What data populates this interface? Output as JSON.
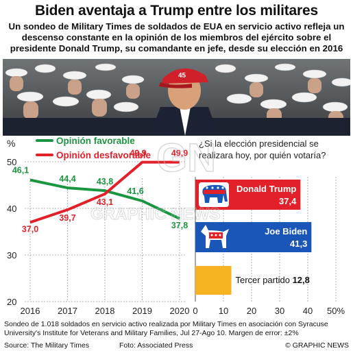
{
  "title": "Biden aventaja a Trump entre los militares",
  "subtitle": "Un sondeo de Military Times de soldados de EUA en servicio activo refleja un descenso constante en la opinión de los miembros del ejército sobre el presidente Donald Trump, su comandante en jefe, desde su elección en 2016",
  "photo": {
    "cap_number": "45",
    "watermark": "GN"
  },
  "colors": {
    "favorable": "#1a9640",
    "unfavorable": "#e2202a",
    "trump": "#e2202a",
    "biden": "#1a55b8",
    "third": "#f7b322",
    "grid": "#999999"
  },
  "chart_data": [
    {
      "type": "line",
      "ylabel": "%",
      "ylim": [
        20,
        55
      ],
      "yticks": [
        "20",
        "30",
        "40",
        "50"
      ],
      "x": [
        "2016",
        "2017",
        "2018",
        "2019",
        "2020"
      ],
      "series": [
        {
          "name": "Opinión favorable",
          "values": [
            46.1,
            44.4,
            43.8,
            41.6,
            37.8
          ],
          "labels": [
            "46,1",
            "44,4",
            "43,8",
            "41,6",
            "37,8"
          ]
        },
        {
          "name": "Opinión desfavorable",
          "values": [
            37.0,
            39.7,
            43.1,
            49.9,
            49.9
          ],
          "labels": [
            "37,0",
            "39,7",
            "43,1",
            "49,9",
            "49,9"
          ]
        }
      ]
    },
    {
      "type": "bar",
      "title": "¿Si la elección presidencial se realizara hoy, por quién votaría?",
      "categories": [
        "Donald Trump",
        "Joe Biden",
        "Tercer partido"
      ],
      "values": [
        37.4,
        41.3,
        12.8
      ],
      "labels": [
        "37,4",
        "41,3",
        "12,8"
      ],
      "xlim": [
        0,
        50
      ],
      "xticks": [
        "0",
        "10",
        "20",
        "30",
        "40",
        "50%"
      ]
    }
  ],
  "footnote": "Sondeo de 1.018 soldados en servicio activo realizada por Military Times en asociación con Syracuse University's Institute for Veterans and Military Families, Jul 27-Ago 10. Margen de error: ±2%",
  "watermark_text": "GRAPHIC NEWS",
  "source": "Source: The Military Times",
  "photo_credit": "Foto: Associated Press",
  "copyright": "© GRAPHIC NEWS"
}
